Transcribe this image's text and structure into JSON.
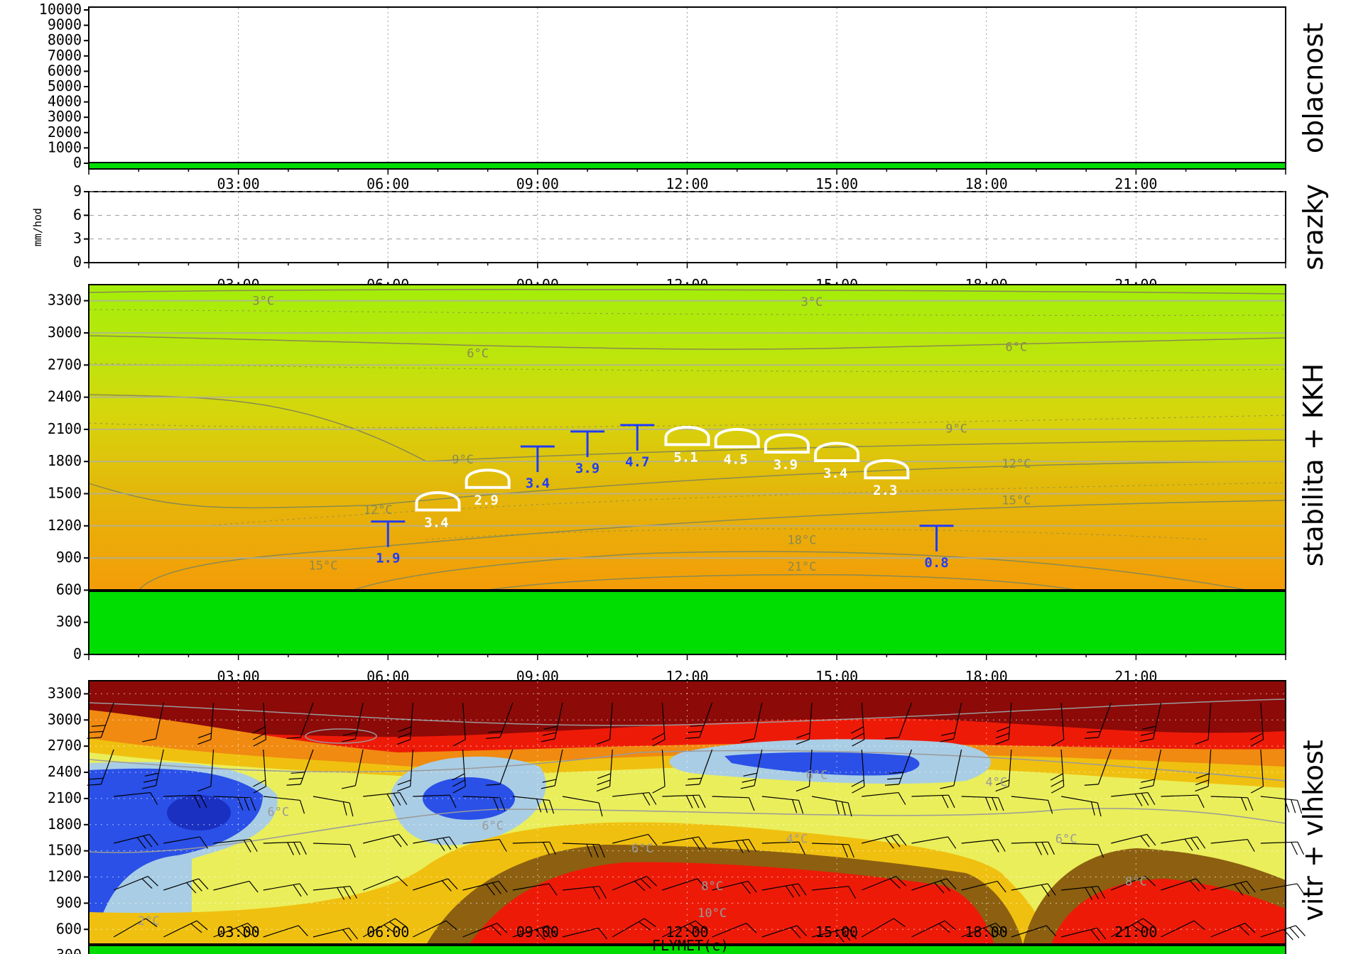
{
  "colors": {
    "ground": "#00dd00",
    "stability_warm": "#f2a20a",
    "stability_mid": "#e4d20c",
    "stability_cool": "#aaee0a",
    "humid_dry_red": "#ee1a08",
    "humid_dark": "#8c0a08",
    "humid_blue": "#2a50e8",
    "humid_lightblue": "#a9cde4",
    "thermal_blue": "#1f3cff",
    "cumulus_white": "#ffffff"
  },
  "footer": "FLYMET(c)",
  "chart_data": [
    {
      "type": "line",
      "panel": "oblacnost",
      "side_title": "oblacnost",
      "x_tick_labels": [
        "03:00",
        "06:00",
        "09:00",
        "12:00",
        "15:00",
        "18:00",
        "21:00"
      ],
      "y_tick_labels": [
        "0",
        "1000",
        "2000",
        "3000",
        "4000",
        "5000",
        "6000",
        "7000",
        "8000",
        "9000",
        "10000"
      ],
      "ylim": [
        0,
        10000
      ],
      "grid": "vertical dotted"
    },
    {
      "type": "line",
      "panel": "srazky",
      "side_title": "srazky",
      "ylabel": "mm/hod",
      "x_tick_labels": [
        "03:00",
        "06:00",
        "09:00",
        "12:00",
        "15:00",
        "18:00",
        "21:00"
      ],
      "y_tick_labels": [
        "0",
        "3",
        "6",
        "9"
      ],
      "ylim": [
        0,
        9
      ],
      "grid": "dotted"
    },
    {
      "type": "heatmap",
      "panel": "stabilita",
      "side_title": "stabilita + KKH",
      "x_tick_labels": [
        "03:00",
        "06:00",
        "09:00",
        "12:00",
        "15:00",
        "18:00",
        "21:00"
      ],
      "y_tick_labels": [
        "0",
        "300",
        "600",
        "900",
        "1200",
        "1500",
        "1800",
        "2100",
        "2400",
        "2700",
        "3000",
        "3300"
      ],
      "ylim": [
        0,
        3450
      ],
      "ground_height": 400,
      "isotherm_labels": [
        {
          "text": "3°C",
          "hour": 3.5,
          "alt": 3300
        },
        {
          "text": "3°C",
          "hour": 14.5,
          "alt": 3290
        },
        {
          "text": "6°C",
          "hour": 7.8,
          "alt": 2810
        },
        {
          "text": "6°C",
          "hour": 18.6,
          "alt": 2870
        },
        {
          "text": "9°C",
          "hour": 7.5,
          "alt": 1820
        },
        {
          "text": "9°C",
          "hour": 17.4,
          "alt": 2110
        },
        {
          "text": "12°C",
          "hour": 5.8,
          "alt": 1350
        },
        {
          "text": "12°C",
          "hour": 18.6,
          "alt": 1780
        },
        {
          "text": "15°C",
          "hour": 4.7,
          "alt": 830
        },
        {
          "text": "15°C",
          "hour": 18.6,
          "alt": 1440
        },
        {
          "text": "18°C",
          "hour": 14.3,
          "alt": 1070
        },
        {
          "text": "21°C",
          "hour": 14.3,
          "alt": 820
        }
      ],
      "thermals": [
        {
          "hour": 6,
          "alt": 1240,
          "value": "1.9",
          "kind": "dry"
        },
        {
          "hour": 7,
          "alt": 1480,
          "value": "3.4",
          "kind": "cumulus"
        },
        {
          "hour": 8,
          "alt": 1690,
          "value": "2.9",
          "kind": "cumulus"
        },
        {
          "hour": 9,
          "alt": 1940,
          "value": "3.4",
          "kind": "dry"
        },
        {
          "hour": 10,
          "alt": 2080,
          "value": "3.9",
          "kind": "dry"
        },
        {
          "hour": 11,
          "alt": 2140,
          "value": "4.7",
          "kind": "dry"
        },
        {
          "hour": 12,
          "alt": 2090,
          "value": "5.1",
          "kind": "cumulus"
        },
        {
          "hour": 13,
          "alt": 2070,
          "value": "4.5",
          "kind": "cumulus"
        },
        {
          "hour": 14,
          "alt": 2020,
          "value": "3.9",
          "kind": "cumulus"
        },
        {
          "hour": 15,
          "alt": 1940,
          "value": "3.4",
          "kind": "cumulus"
        },
        {
          "hour": 16,
          "alt": 1780,
          "value": "2.3",
          "kind": "cumulus"
        },
        {
          "hour": 17,
          "alt": 1200,
          "value": "0.8",
          "kind": "dry"
        }
      ]
    },
    {
      "type": "heatmap",
      "panel": "vitr",
      "side_title": "vitr + vlhkost",
      "x_tick_labels": [
        "03:00",
        "06:00",
        "09:00",
        "12:00",
        "15:00",
        "18:00",
        "21:00"
      ],
      "y_tick_labels": [
        "0",
        "300",
        "600",
        "900",
        "1200",
        "1500",
        "1800",
        "2100",
        "2400",
        "2700",
        "3000",
        "3300"
      ],
      "ylim": [
        0,
        3450
      ],
      "ground_height": 400,
      "isotherm_labels": [
        {
          "text": "2°C",
          "hour": 1.2,
          "alt": 700
        },
        {
          "text": "6°C",
          "hour": 3.8,
          "alt": 1950
        },
        {
          "text": "6°C",
          "hour": 8.1,
          "alt": 1790
        },
        {
          "text": "6°C",
          "hour": 11.1,
          "alt": 1530
        },
        {
          "text": "4°C",
          "hour": 14.2,
          "alt": 1640
        },
        {
          "text": "4°C",
          "hour": 18.2,
          "alt": 2290
        },
        {
          "text": "6°C",
          "hour": 19.6,
          "alt": 1640
        },
        {
          "text": "6°C",
          "hour": 14.6,
          "alt": 2370
        },
        {
          "text": "8°C",
          "hour": 12.5,
          "alt": 1100
        },
        {
          "text": "8°C",
          "hour": 21,
          "alt": 1150
        },
        {
          "text": "10°C",
          "hour": 12.5,
          "alt": 790
        }
      ]
    }
  ]
}
